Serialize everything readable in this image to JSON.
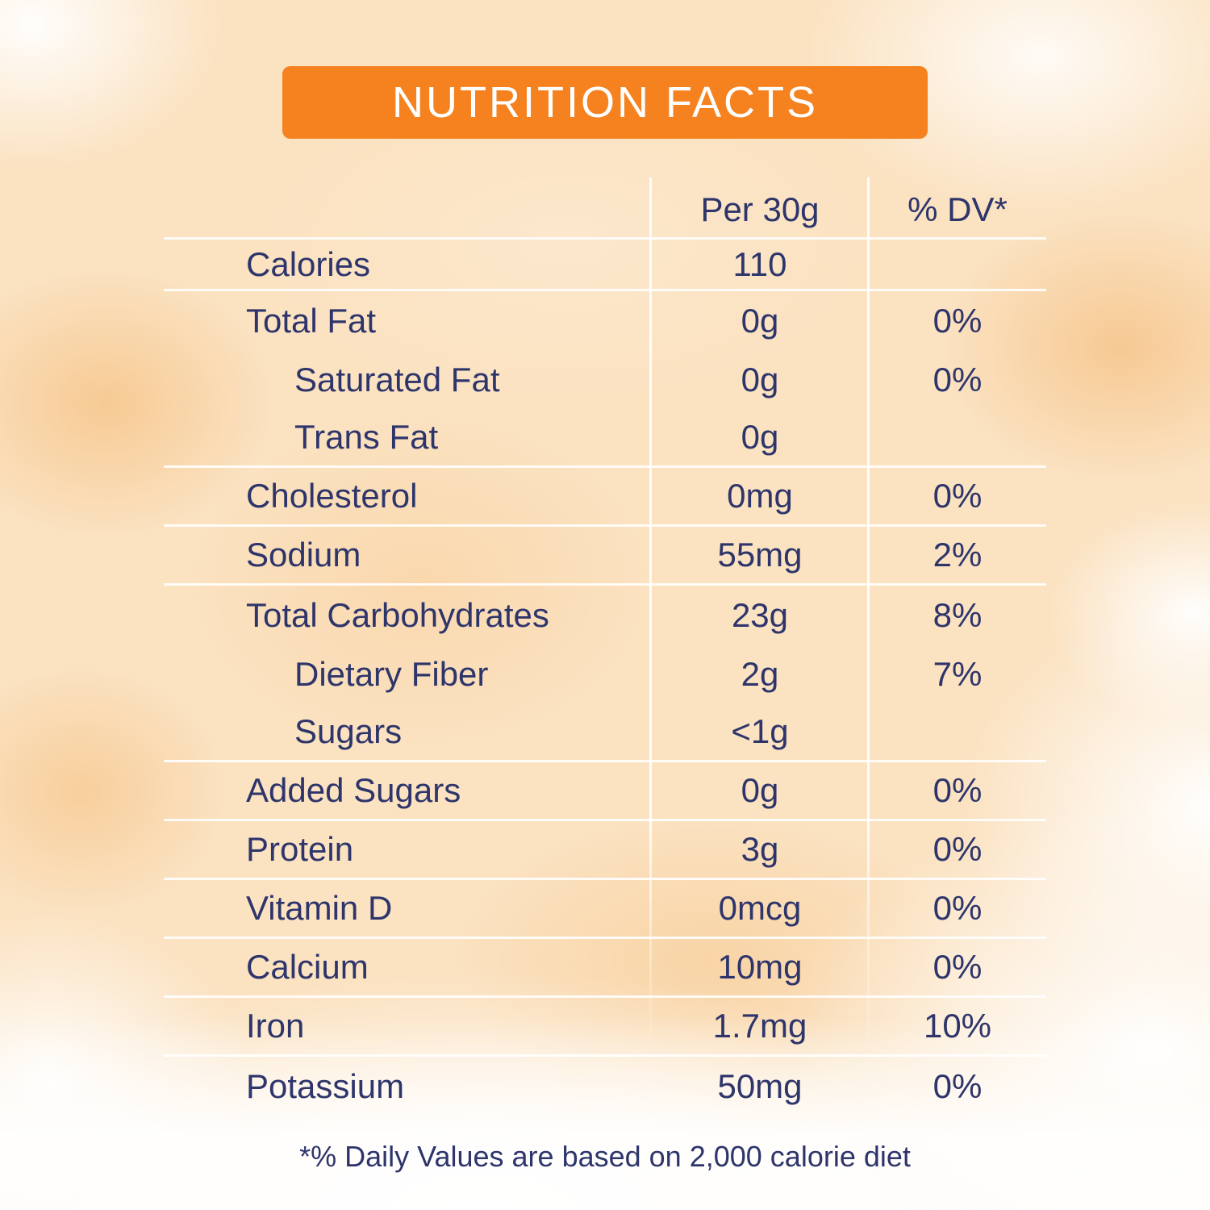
{
  "colors": {
    "accent_orange": "#f5821f",
    "text_navy": "#2e356b",
    "divider_white": "#ffffff",
    "background_peach": "#fbe2c1"
  },
  "header": {
    "title": "NUTRITION FACTS"
  },
  "table": {
    "columns": {
      "amount": "Per 30g",
      "dv": "% DV*"
    },
    "rows": [
      {
        "label": "Calories",
        "amount": "110",
        "dv": "",
        "indent": false,
        "line_below": true,
        "compact": true
      },
      {
        "label": "Total Fat",
        "amount": "0g",
        "dv": "0%",
        "indent": false,
        "line_below": false
      },
      {
        "label": "Saturated Fat",
        "amount": "0g",
        "dv": "0%",
        "indent": true,
        "line_below": false
      },
      {
        "label": "Trans Fat",
        "amount": "0g",
        "dv": "",
        "indent": true,
        "line_below": true
      },
      {
        "label": "Cholesterol",
        "amount": "0mg",
        "dv": "0%",
        "indent": false,
        "line_below": true
      },
      {
        "label": "Sodium",
        "amount": "55mg",
        "dv": "2%",
        "indent": false,
        "line_below": true
      },
      {
        "label": "Total Carbohydrates",
        "amount": "23g",
        "dv": "8%",
        "indent": false,
        "line_below": false
      },
      {
        "label": "Dietary Fiber",
        "amount": "2g",
        "dv": "7%",
        "indent": true,
        "line_below": false
      },
      {
        "label": "Sugars",
        "amount": "<1g",
        "dv": "",
        "indent": true,
        "line_below": true
      },
      {
        "label": "Added Sugars",
        "amount": "0g",
        "dv": "0%",
        "indent": false,
        "line_below": true
      },
      {
        "label": "Protein",
        "amount": "3g",
        "dv": "0%",
        "indent": false,
        "line_below": true
      },
      {
        "label": "Vitamin D",
        "amount": "0mcg",
        "dv": "0%",
        "indent": false,
        "line_below": true
      },
      {
        "label": "Calcium",
        "amount": "10mg",
        "dv": "0%",
        "indent": false,
        "line_below": true
      },
      {
        "label": "Iron",
        "amount": "1.7mg",
        "dv": "10%",
        "indent": false,
        "line_below": true
      },
      {
        "label": "Potassium",
        "amount": "50mg",
        "dv": "0%",
        "indent": false,
        "line_below": false
      }
    ]
  },
  "footnote": "*% Daily Values are based on 2,000 calorie diet"
}
